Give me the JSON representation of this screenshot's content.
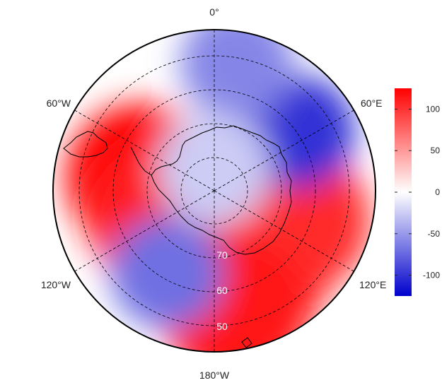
{
  "map": {
    "projection": "polar stereographic (south pole)",
    "longitude_labels": [
      "0°",
      "60°E",
      "120°E",
      "180°W",
      "120°W",
      "60°W"
    ],
    "latitude_labels": [
      "70",
      "60",
      "50"
    ],
    "colorbar": {
      "ticks": [
        "100",
        "50",
        "0",
        "-50",
        "-100"
      ],
      "range": [
        -125,
        125
      ],
      "low_color": "#0000cc",
      "mid_color": "#ffffff",
      "high_color": "#ff0000"
    },
    "field_centers": {
      "positive": [
        {
          "lon": -80,
          "lat": -62,
          "value": 125
        },
        {
          "lon": -115,
          "lat": -68,
          "value": 110
        },
        {
          "lon": 150,
          "lat": -58,
          "value": 120
        },
        {
          "lon": 110,
          "lat": -58,
          "value": 105
        },
        {
          "lon": 170,
          "lat": -45,
          "value": 115
        }
      ],
      "negative": [
        {
          "lon": 55,
          "lat": -52,
          "value": -100
        },
        {
          "lon": 10,
          "lat": -42,
          "value": -60
        },
        {
          "lon": -150,
          "lat": -55,
          "value": -70
        },
        {
          "lon": 0,
          "lat": -82,
          "value": -25
        }
      ]
    }
  }
}
